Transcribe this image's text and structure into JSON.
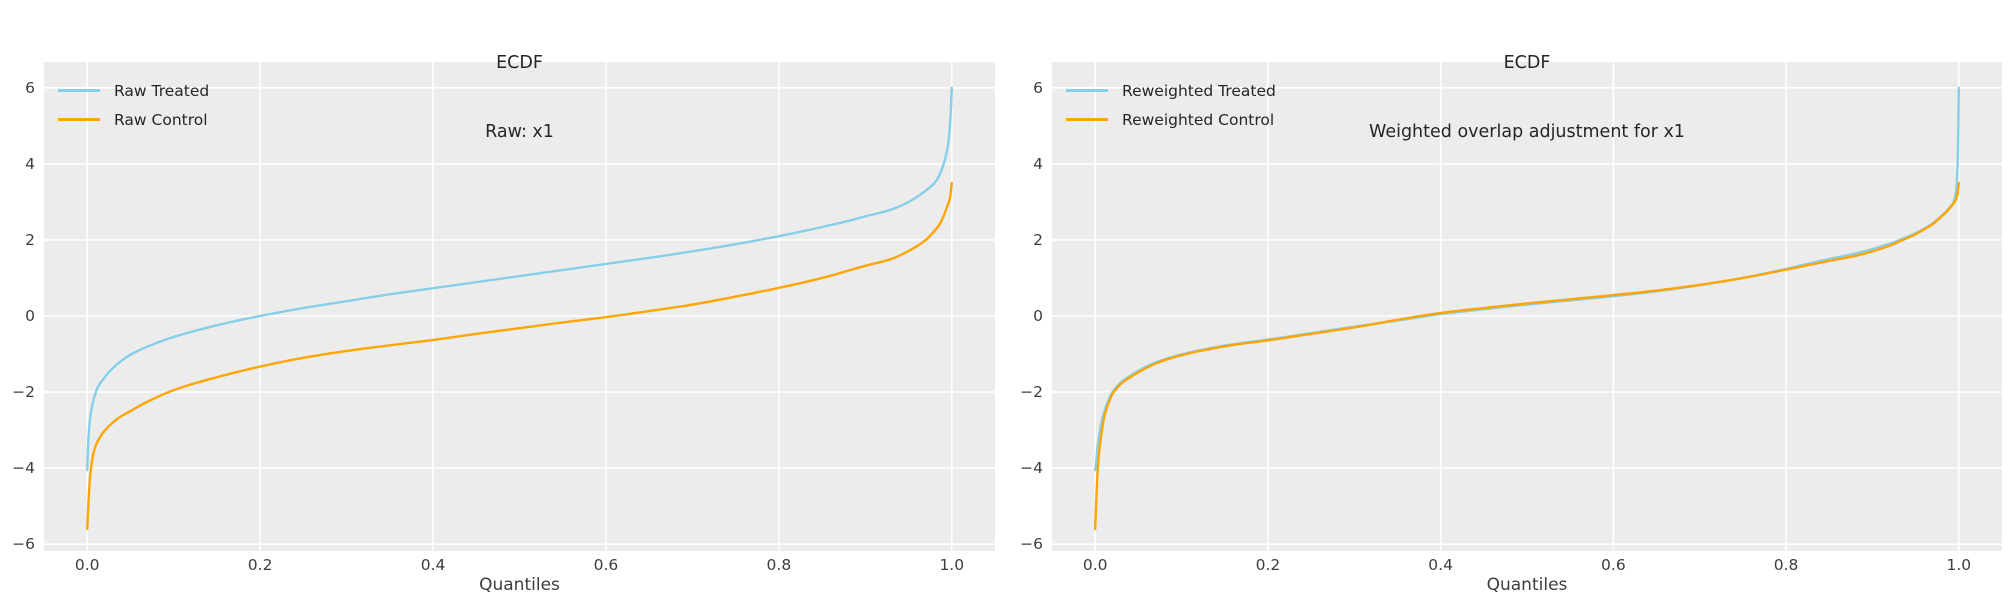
{
  "figure": {
    "background": "#ffffff",
    "panel_background": "#ececec",
    "grid_color": "#ffffff",
    "text_color": "#262626",
    "tick_color": "#3d3d3d"
  },
  "chart_data": [
    {
      "type": "line",
      "title": "ECDF",
      "subtitle": "Raw: x1",
      "xlabel": "Quantiles",
      "xlim": [
        -0.05,
        1.05
      ],
      "ylim": [
        -6.18,
        6.68
      ],
      "grid": true,
      "legend_position": "upper-left",
      "x_tick_values": [
        0.0,
        0.2,
        0.4,
        0.6,
        0.8,
        1.0
      ],
      "x_tick_labels": [
        "0.0",
        "0.2",
        "0.4",
        "0.6",
        "0.8",
        "1.0"
      ],
      "y_tick_values": [
        6,
        4,
        2,
        0,
        -2,
        -4,
        -6
      ],
      "y_tick_labels": [
        "6",
        "4",
        "2",
        "0",
        "−2",
        "−4",
        "−6"
      ],
      "series": [
        {
          "name": "Raw Treated",
          "color": "#87CEEB",
          "points": [
            [
              0,
              -4.05
            ],
            [
              0.0005,
              -3.7
            ],
            [
              0.001,
              -3.4
            ],
            [
              0.002,
              -3.0
            ],
            [
              0.003,
              -2.75
            ],
            [
              0.005,
              -2.45
            ],
            [
              0.008,
              -2.15
            ],
            [
              0.012,
              -1.88
            ],
            [
              0.02,
              -1.62
            ],
            [
              0.03,
              -1.36
            ],
            [
              0.05,
              -1.02
            ],
            [
              0.08,
              -0.71
            ],
            [
              0.1,
              -0.55
            ],
            [
              0.12,
              -0.42
            ],
            [
              0.14,
              -0.3
            ],
            [
              0.17,
              -0.14
            ],
            [
              0.2,
              0.0
            ],
            [
              0.25,
              0.21
            ],
            [
              0.3,
              0.39
            ],
            [
              0.35,
              0.57
            ],
            [
              0.4,
              0.73
            ],
            [
              0.45,
              0.89
            ],
            [
              0.5,
              1.05
            ],
            [
              0.55,
              1.21
            ],
            [
              0.6,
              1.37
            ],
            [
              0.65,
              1.53
            ],
            [
              0.7,
              1.7
            ],
            [
              0.75,
              1.89
            ],
            [
              0.8,
              2.1
            ],
            [
              0.85,
              2.34
            ],
            [
              0.88,
              2.5
            ],
            [
              0.9,
              2.62
            ],
            [
              0.93,
              2.8
            ],
            [
              0.95,
              3.0
            ],
            [
              0.97,
              3.3
            ],
            [
              0.98,
              3.5
            ],
            [
              0.985,
              3.67
            ],
            [
              0.99,
              3.95
            ],
            [
              0.994,
              4.3
            ],
            [
              0.997,
              4.75
            ],
            [
              0.9985,
              5.2
            ],
            [
              1,
              6.0
            ]
          ]
        },
        {
          "name": "Raw Control",
          "color": "#FFA500",
          "points": [
            [
              0,
              -5.6
            ],
            [
              0.001,
              -5.1
            ],
            [
              0.002,
              -4.65
            ],
            [
              0.003,
              -4.3
            ],
            [
              0.005,
              -3.9
            ],
            [
              0.007,
              -3.62
            ],
            [
              0.01,
              -3.4
            ],
            [
              0.015,
              -3.18
            ],
            [
              0.02,
              -3.02
            ],
            [
              0.025,
              -2.9
            ],
            [
              0.035,
              -2.7
            ],
            [
              0.05,
              -2.5
            ],
            [
              0.07,
              -2.25
            ],
            [
              0.1,
              -1.95
            ],
            [
              0.12,
              -1.8
            ],
            [
              0.16,
              -1.55
            ],
            [
              0.2,
              -1.33
            ],
            [
              0.25,
              -1.1
            ],
            [
              0.3,
              -0.92
            ],
            [
              0.35,
              -0.77
            ],
            [
              0.4,
              -0.63
            ],
            [
              0.45,
              -0.47
            ],
            [
              0.5,
              -0.32
            ],
            [
              0.55,
              -0.17
            ],
            [
              0.6,
              -0.03
            ],
            [
              0.65,
              0.13
            ],
            [
              0.7,
              0.3
            ],
            [
              0.75,
              0.51
            ],
            [
              0.8,
              0.74
            ],
            [
              0.85,
              1.0
            ],
            [
              0.9,
              1.32
            ],
            [
              0.93,
              1.5
            ],
            [
              0.95,
              1.71
            ],
            [
              0.97,
              2.0
            ],
            [
              0.98,
              2.24
            ],
            [
              0.985,
              2.38
            ],
            [
              0.99,
              2.6
            ],
            [
              0.995,
              2.9
            ],
            [
              0.998,
              3.1
            ],
            [
              1,
              3.5
            ]
          ]
        }
      ]
    },
    {
      "type": "line",
      "title": "ECDF",
      "subtitle": "Weighted overlap adjustment for x1",
      "xlabel": "Quantiles",
      "xlim": [
        -0.05,
        1.05
      ],
      "ylim": [
        -6.18,
        6.68
      ],
      "grid": true,
      "legend_position": "upper-left",
      "x_tick_values": [
        0.0,
        0.2,
        0.4,
        0.6,
        0.8,
        1.0
      ],
      "x_tick_labels": [
        "0.0",
        "0.2",
        "0.4",
        "0.6",
        "0.8",
        "1.0"
      ],
      "y_tick_values": [
        6,
        4,
        2,
        0,
        -2,
        -4,
        -6
      ],
      "y_tick_labels": [
        "6",
        "4",
        "2",
        "0",
        "−2",
        "−4",
        "−6"
      ],
      "series": [
        {
          "name": "Reweighted Treated",
          "color": "#87CEEB",
          "points": [
            [
              0,
              -4.05
            ],
            [
              0.001,
              -3.9
            ],
            [
              0.002,
              -3.6
            ],
            [
              0.004,
              -3.25
            ],
            [
              0.006,
              -2.95
            ],
            [
              0.008,
              -2.72
            ],
            [
              0.01,
              -2.55
            ],
            [
              0.013,
              -2.35
            ],
            [
              0.017,
              -2.13
            ],
            [
              0.02,
              -2.0
            ],
            [
              0.025,
              -1.86
            ],
            [
              0.03,
              -1.74
            ],
            [
              0.04,
              -1.58
            ],
            [
              0.05,
              -1.44
            ],
            [
              0.07,
              -1.22
            ],
            [
              0.1,
              -1.01
            ],
            [
              0.13,
              -0.86
            ],
            [
              0.16,
              -0.74
            ],
            [
              0.2,
              -0.62
            ],
            [
              0.25,
              -0.45
            ],
            [
              0.3,
              -0.28
            ],
            [
              0.35,
              -0.12
            ],
            [
              0.4,
              0.05
            ],
            [
              0.45,
              0.18
            ],
            [
              0.5,
              0.3
            ],
            [
              0.55,
              0.41
            ],
            [
              0.6,
              0.52
            ],
            [
              0.65,
              0.65
            ],
            [
              0.7,
              0.81
            ],
            [
              0.75,
              1.0
            ],
            [
              0.8,
              1.24
            ],
            [
              0.85,
              1.5
            ],
            [
              0.88,
              1.64
            ],
            [
              0.9,
              1.76
            ],
            [
              0.92,
              1.9
            ],
            [
              0.94,
              2.08
            ],
            [
              0.95,
              2.18
            ],
            [
              0.96,
              2.3
            ],
            [
              0.97,
              2.44
            ],
            [
              0.98,
              2.64
            ],
            [
              0.985,
              2.74
            ],
            [
              0.99,
              2.87
            ],
            [
              0.994,
              3.0
            ],
            [
              0.997,
              3.3
            ],
            [
              0.9985,
              3.9
            ],
            [
              0.9993,
              4.8
            ],
            [
              1,
              6.0
            ]
          ]
        },
        {
          "name": "Reweighted Control",
          "color": "#FFA500",
          "points": [
            [
              0,
              -5.6
            ],
            [
              0.001,
              -5.0
            ],
            [
              0.002,
              -4.45
            ],
            [
              0.003,
              -4.0
            ],
            [
              0.004,
              -3.7
            ],
            [
              0.006,
              -3.3
            ],
            [
              0.008,
              -3.0
            ],
            [
              0.01,
              -2.7
            ],
            [
              0.013,
              -2.45
            ],
            [
              0.017,
              -2.2
            ],
            [
              0.02,
              -2.05
            ],
            [
              0.025,
              -1.9
            ],
            [
              0.03,
              -1.78
            ],
            [
              0.04,
              -1.62
            ],
            [
              0.05,
              -1.48
            ],
            [
              0.07,
              -1.25
            ],
            [
              0.1,
              -1.03
            ],
            [
              0.13,
              -0.88
            ],
            [
              0.16,
              -0.76
            ],
            [
              0.2,
              -0.64
            ],
            [
              0.25,
              -0.47
            ],
            [
              0.3,
              -0.3
            ],
            [
              0.35,
              -0.1
            ],
            [
              0.4,
              0.08
            ],
            [
              0.45,
              0.21
            ],
            [
              0.5,
              0.33
            ],
            [
              0.55,
              0.44
            ],
            [
              0.6,
              0.55
            ],
            [
              0.65,
              0.67
            ],
            [
              0.7,
              0.82
            ],
            [
              0.75,
              1.0
            ],
            [
              0.8,
              1.22
            ],
            [
              0.85,
              1.45
            ],
            [
              0.88,
              1.58
            ],
            [
              0.9,
              1.7
            ],
            [
              0.92,
              1.85
            ],
            [
              0.94,
              2.05
            ],
            [
              0.95,
              2.15
            ],
            [
              0.96,
              2.28
            ],
            [
              0.97,
              2.42
            ],
            [
              0.98,
              2.62
            ],
            [
              0.985,
              2.72
            ],
            [
              0.99,
              2.85
            ],
            [
              0.995,
              3.0
            ],
            [
              0.998,
              3.15
            ],
            [
              1,
              3.5
            ]
          ]
        }
      ]
    }
  ]
}
